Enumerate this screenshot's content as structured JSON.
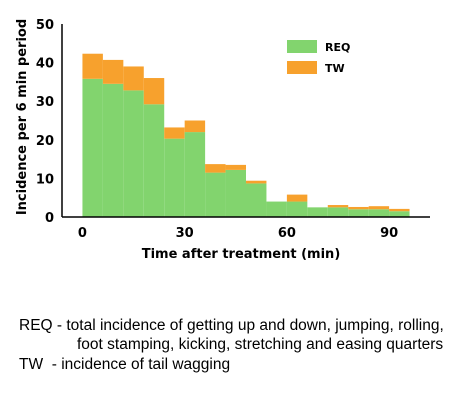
{
  "chart_data": {
    "type": "bar",
    "stacked": true,
    "xlabel": "Time after treatment (min)",
    "ylabel": "Incidence per 6 min period",
    "xlim": [
      -6,
      102
    ],
    "ylim": [
      0,
      50
    ],
    "xticks": [
      0,
      30,
      60,
      90
    ],
    "yticks": [
      0,
      10,
      20,
      30,
      40,
      50
    ],
    "bin_width": 6,
    "x": [
      3,
      9,
      15,
      21,
      27,
      33,
      39,
      45,
      51,
      57,
      63,
      69,
      75,
      81,
      87,
      93
    ],
    "series": [
      {
        "name": "REQ",
        "color": "#82d46e",
        "values": [
          35.8,
          34.5,
          32.8,
          29.2,
          20.3,
          22.0,
          11.5,
          12.2,
          8.7,
          4.0,
          4.0,
          2.5,
          2.5,
          2.0,
          2.0,
          1.5
        ]
      },
      {
        "name": "TW",
        "color": "#f7a12d",
        "values": [
          6.5,
          6.2,
          6.2,
          6.8,
          2.9,
          3.0,
          2.2,
          1.3,
          0.7,
          0,
          1.8,
          0,
          0.6,
          0.6,
          0.8,
          0.6
        ]
      }
    ],
    "legend": "top-right",
    "grid": false
  },
  "notes": [
    {
      "key": "REQ",
      "sep": " - ",
      "text": "total incidence of getting up and down, jumping, rolling, foot stamping, kicking, stretching and easing quarters"
    },
    {
      "key": "TW",
      "sep": "  - ",
      "text": "incidence of tail wagging"
    }
  ]
}
